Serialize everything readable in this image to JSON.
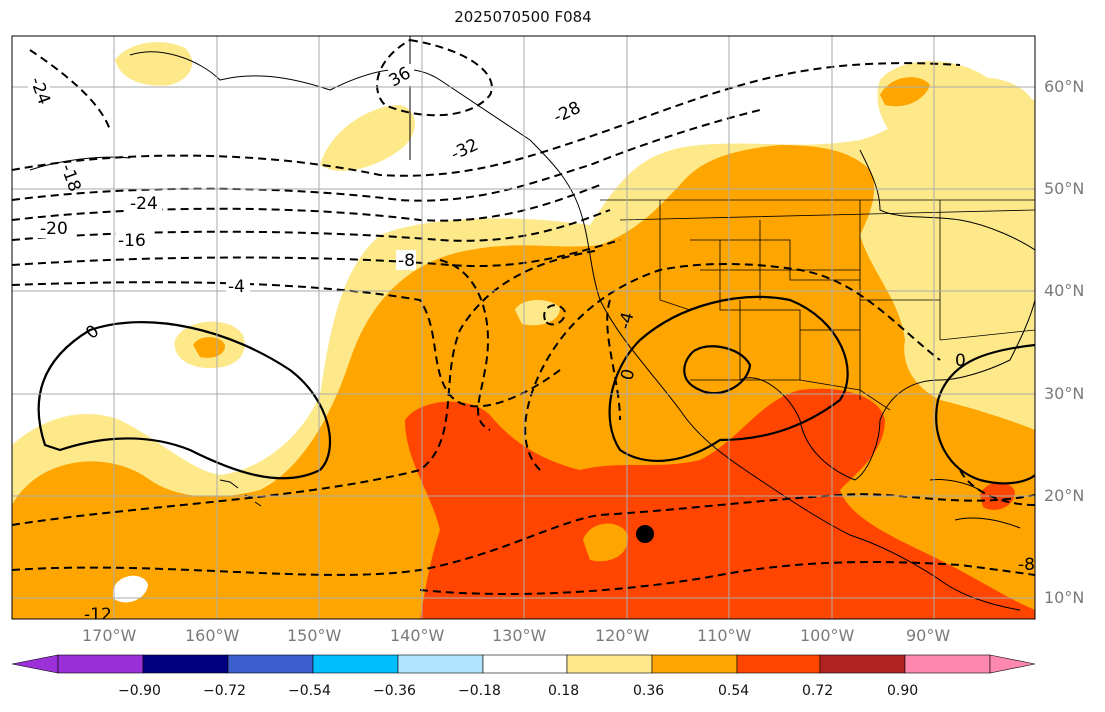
{
  "title": "2025070500 F084",
  "map": {
    "projection": "PlateCarree",
    "lon_range": [
      -180,
      -82
    ],
    "lat_range": [
      8,
      65
    ],
    "fill_variable_colorbar_levels": [
      -0.9,
      -0.72,
      -0.54,
      -0.36,
      -0.18,
      0.18,
      0.36,
      0.54,
      0.72,
      0.9
    ],
    "contour_lines": "dashed negative, solid zero",
    "contour_labels": [
      "-24",
      "-18",
      "36",
      "-32",
      "-28",
      "-24",
      "-20",
      "-16",
      "-8",
      "-4",
      "0",
      "-4",
      "0",
      "0",
      "-8",
      "-12"
    ],
    "marker": {
      "lon": -118,
      "lat": 16,
      "symbol": "filled-circle",
      "color": "#000000"
    }
  },
  "lon_axis": {
    "ticks": [
      "170°W",
      "160°W",
      "150°W",
      "140°W",
      "130°W",
      "120°W",
      "110°W",
      "100°W",
      "90°W"
    ]
  },
  "lat_axis": {
    "ticks": [
      "60°N",
      "50°N",
      "40°N",
      "30°N",
      "20°N",
      "10°N"
    ]
  },
  "colorbar": {
    "ticks": [
      "−0.90",
      "−0.72",
      "−0.54",
      "−0.36",
      "−0.18",
      "0.18",
      "0.36",
      "0.54",
      "0.72",
      "0.90"
    ],
    "colors": [
      "#9b30d9",
      "#000080",
      "#3a5fcd",
      "#00bfff",
      "#aee4ff",
      "#ffffff",
      "#fde98a",
      "#ffa500",
      "#ff4500",
      "#b22222",
      "#ff88b0"
    ]
  }
}
